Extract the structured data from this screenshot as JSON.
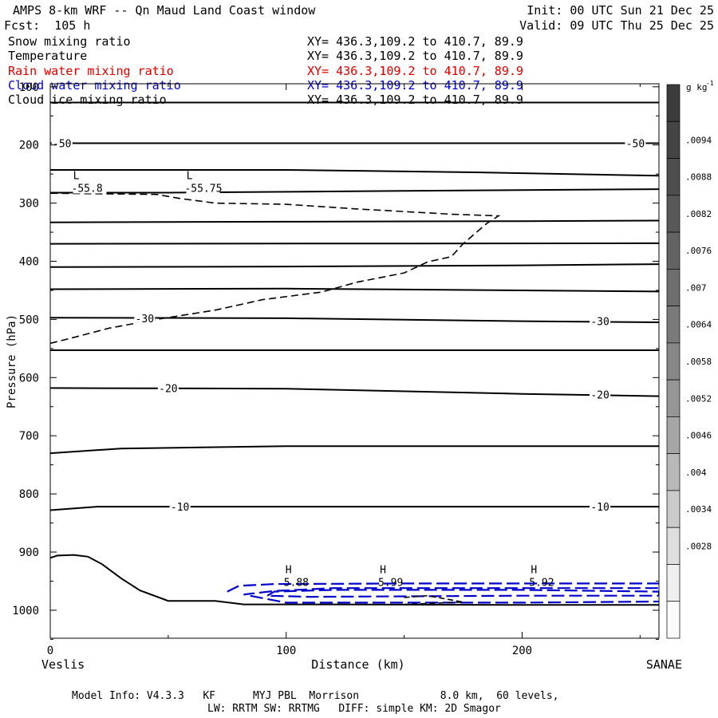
{
  "header": {
    "title": "AMPS 8-km WRF -- Qn Maud Land Coast window",
    "fcst": "Fcst:  105 h",
    "init": "Init: 00 UTC Sun 21 Dec 25",
    "valid": "Valid: 09 UTC Thu 25 Dec 25"
  },
  "fields": [
    {
      "name": "Snow mixing ratio",
      "xy": "XY= 436.3,109.2 to 410.7, 89.9",
      "color": "#000000"
    },
    {
      "name": "Temperature",
      "xy": "XY= 436.3,109.2 to 410.7, 89.9",
      "color": "#000000"
    },
    {
      "name": "Rain water mixing ratio",
      "xy": "XY= 436.3,109.2 to 410.7, 89.9",
      "color": "#e00000"
    },
    {
      "name": "Cloud water mixing ratio",
      "xy": "XY= 436.3,109.2 to 410.7, 89.9",
      "color": "#0000cc"
    },
    {
      "name": "Cloud ice mixing ratio",
      "xy": "XY= 436.3,109.2 to 410.7, 89.9",
      "color": "#000000"
    }
  ],
  "footer": {
    "line1": "Model Info: V4.3.3   KF      MYJ PBL  Morrison             8.0 km,  60 levels,",
    "line2": "LW: RRTM SW: RRTMG   DIFF: simple KM: 2D Smagor"
  },
  "chart_data": {
    "type": "cross-section contour",
    "title": "AMPS 8-km WRF -- Qn Maud Land Coast window",
    "xlabel": "Distance (km)",
    "ylabel": "Pressure (hPa)",
    "xlim": [
      0,
      258
    ],
    "ylim": [
      1050,
      100
    ],
    "x_ticks": [
      0,
      100,
      200
    ],
    "y_ticks": [
      100,
      200,
      300,
      400,
      500,
      600,
      700,
      800,
      900,
      1000
    ],
    "x_endpoint_labels": {
      "left": "Veslis",
      "right": "SANAE"
    },
    "colorbar": {
      "unit": "g kg",
      "unit_exp": "-1",
      "labels": [
        ".0094",
        ".0088",
        ".0082",
        ".0076",
        ".007",
        ".0064",
        ".0058",
        ".0052",
        ".0046",
        ".004",
        ".0034",
        ".0028"
      ],
      "colors": [
        "#3c3c3c",
        "#444444",
        "#4e4e4e",
        "#585858",
        "#636363",
        "#6e6e6e",
        "#7a7a7a",
        "#878787",
        "#969696",
        "#a6a6a6",
        "#b8b8b8",
        "#cbcbcb",
        "#dedede",
        "#efefef",
        "#fafafa"
      ]
    },
    "temperature_isotherms": [
      {
        "points": [
          [
            0,
            127
          ],
          [
            258,
            127
          ]
        ]
      },
      {
        "points": [
          [
            0,
            197
          ],
          [
            80,
            197
          ],
          [
            258,
            197
          ]
        ],
        "label": "-50",
        "label_at": [
          [
            5,
            197
          ],
          [
            248,
            197
          ]
        ]
      },
      {
        "points": [
          [
            0,
            243
          ],
          [
            100,
            243
          ],
          [
            180,
            247
          ],
          [
            258,
            253
          ]
        ]
      },
      {
        "points": [
          [
            0,
            282
          ],
          [
            50,
            282
          ],
          [
            150,
            279
          ],
          [
            258,
            276
          ]
        ]
      },
      {
        "points": [
          [
            0,
            333
          ],
          [
            100,
            332
          ],
          [
            200,
            331
          ],
          [
            258,
            330
          ]
        ]
      },
      {
        "points": [
          [
            0,
            370
          ],
          [
            258,
            369
          ]
        ]
      },
      {
        "points": [
          [
            0,
            410
          ],
          [
            100,
            409
          ],
          [
            200,
            407
          ],
          [
            258,
            405
          ]
        ]
      },
      {
        "points": [
          [
            0,
            448
          ],
          [
            100,
            447
          ],
          [
            200,
            450
          ],
          [
            258,
            452
          ]
        ]
      },
      {
        "points": [
          [
            0,
            497
          ],
          [
            100,
            498
          ],
          [
            200,
            503
          ],
          [
            258,
            505
          ]
        ],
        "label": "-30",
        "label_at": [
          [
            40,
            498
          ],
          [
            233,
            503
          ]
        ]
      },
      {
        "points": [
          [
            0,
            553
          ],
          [
            258,
            553
          ]
        ]
      },
      {
        "points": [
          [
            0,
            618
          ],
          [
            100,
            619
          ],
          [
            200,
            628
          ],
          [
            258,
            632
          ]
        ],
        "label": "-20",
        "label_at": [
          [
            50,
            618
          ],
          [
            233,
            629
          ]
        ]
      },
      {
        "points": [
          [
            0,
            730
          ],
          [
            30,
            722
          ],
          [
            100,
            718
          ],
          [
            258,
            718
          ]
        ]
      },
      {
        "points": [
          [
            0,
            828
          ],
          [
            20,
            822
          ],
          [
            100,
            822
          ],
          [
            258,
            822
          ]
        ],
        "label": "-10",
        "label_at": [
          [
            55,
            822
          ],
          [
            233,
            822
          ]
        ]
      },
      {
        "points": [
          [
            0,
            910
          ],
          [
            3,
            906
          ],
          [
            10,
            905
          ],
          [
            16,
            908
          ],
          [
            22,
            921
          ],
          [
            30,
            945
          ],
          [
            38,
            966
          ],
          [
            50,
            984
          ],
          [
            70,
            984
          ],
          [
            82,
            990
          ],
          [
            120,
            990
          ],
          [
            200,
            991
          ],
          [
            258,
            991
          ]
        ]
      }
    ],
    "snow_mixing_ratio_contours": [
      {
        "points": [
          [
            0,
            541
          ],
          [
            8,
            533
          ],
          [
            25,
            515
          ],
          [
            45,
            500
          ],
          [
            70,
            484
          ],
          [
            90,
            466
          ],
          [
            115,
            453
          ],
          [
            130,
            436
          ],
          [
            150,
            420
          ],
          [
            160,
            401
          ],
          [
            170,
            392
          ],
          [
            175,
            370
          ],
          [
            185,
            335
          ],
          [
            190,
            322
          ],
          [
            170,
            319
          ],
          [
            130,
            310
          ],
          [
            100,
            302
          ],
          [
            70,
            300
          ],
          [
            55,
            292
          ],
          [
            45,
            285
          ],
          [
            0,
            283
          ]
        ],
        "dashed": true
      }
    ],
    "cloud_water_mixing_ratio_contours": [
      {
        "points": [
          [
            75,
            968
          ],
          [
            80,
            958
          ],
          [
            95,
            955
          ],
          [
            150,
            954
          ],
          [
            258,
            954
          ],
          [
            258,
            962
          ],
          [
            120,
            962
          ],
          [
            95,
            967
          ],
          [
            82,
            973
          ],
          [
            100,
            987
          ],
          [
            200,
            987
          ],
          [
            258,
            985
          ]
        ],
        "dashed": true
      },
      {
        "points": [
          [
            92,
            975
          ],
          [
            95,
            968
          ],
          [
            120,
            965
          ],
          [
            200,
            965
          ],
          [
            258,
            968
          ],
          [
            258,
            975
          ],
          [
            200,
            975
          ],
          [
            110,
            977
          ],
          [
            92,
            975
          ]
        ],
        "dashed": true
      }
    ],
    "cloud_ice_mixing_ratio_contours": [
      {
        "points": [
          [
            150,
            978
          ],
          [
            160,
            975
          ],
          [
            175,
            986
          ],
          [
            150,
            990
          ]
        ],
        "dashed": true
      }
    ],
    "extrema": [
      {
        "type": "L",
        "value": "-55.8",
        "x": 11,
        "p": 282
      },
      {
        "type": "L",
        "value": "-55.75",
        "x": 59,
        "p": 282
      },
      {
        "type": "H",
        "value": "5.88",
        "x": 101,
        "p": 960
      },
      {
        "type": "H",
        "value": "5.99",
        "x": 141,
        "p": 960
      },
      {
        "type": "H",
        "value": "5.92",
        "x": 205,
        "p": 960
      }
    ]
  }
}
